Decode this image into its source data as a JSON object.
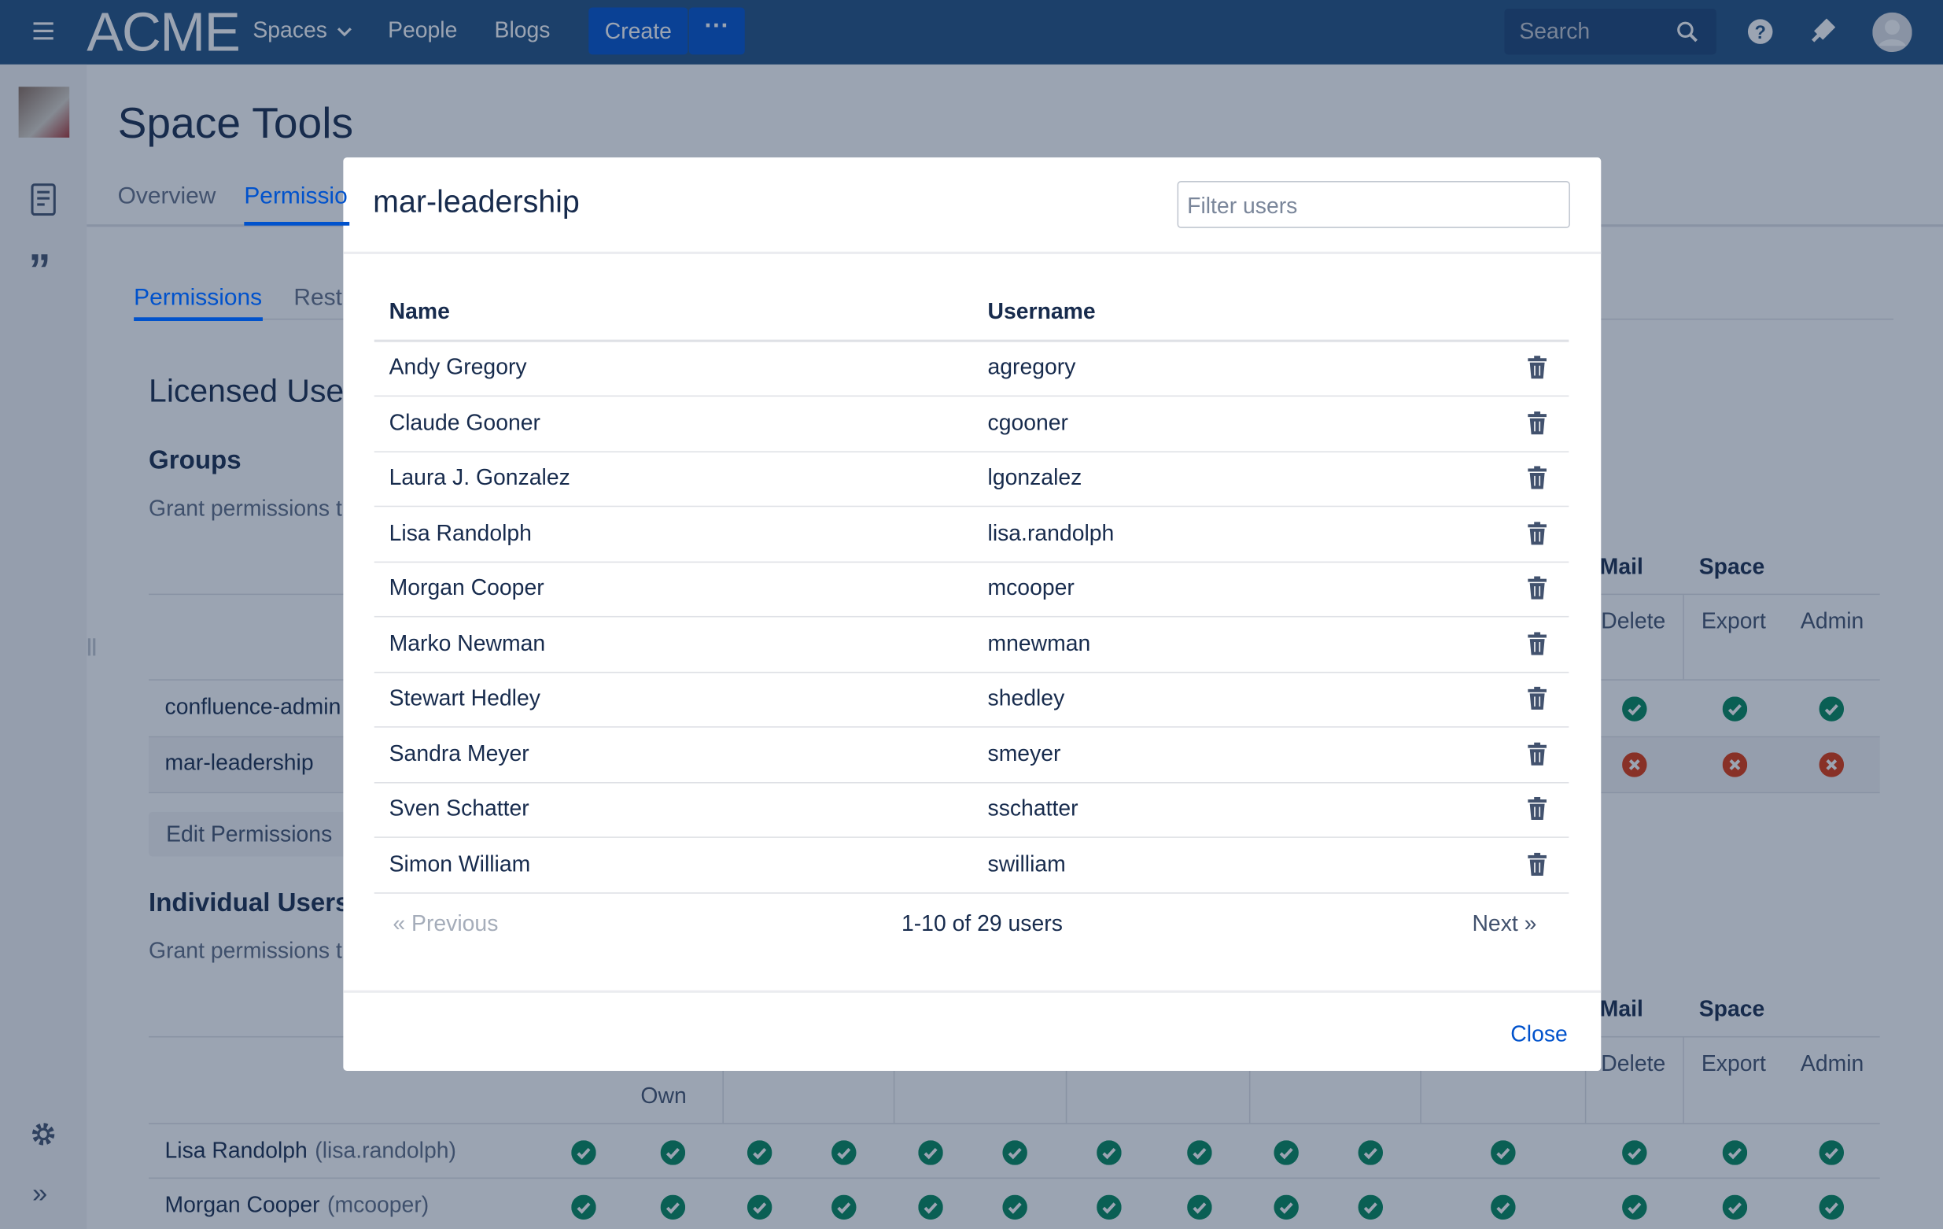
{
  "nav": {
    "logo": "ACME",
    "items": [
      "Spaces",
      "People",
      "Blogs"
    ],
    "create": "Create",
    "search": "Search"
  },
  "page": {
    "title": "Space Tools",
    "tabs": [
      "Overview",
      "Permissio"
    ],
    "subtabs": [
      "Permissions",
      "Rest"
    ],
    "section": "Licensed User",
    "groups_heading": "Groups",
    "groups_desc": "Grant permissions t",
    "group_headers": [
      "Mail",
      "Space"
    ],
    "group_subheaders": [
      "Delete",
      "Export",
      "Admin"
    ],
    "groups": [
      "confluence-admin",
      "mar-leadership"
    ],
    "edit": "Edit Permissions",
    "individual_heading": "Individual Users",
    "individual_desc": "Grant permissions t",
    "individual_headers": [
      "Mail",
      "Space"
    ],
    "individual_subheaders": [
      "Own",
      "Delete",
      "Export",
      "Admin"
    ],
    "users": [
      {
        "name": "Lisa Randolph",
        "username": "(lisa.randolph)"
      },
      {
        "name": "Morgan Cooper",
        "username": "(mcooper)"
      }
    ]
  },
  "modal": {
    "title": "mar-leadership",
    "filter_placeholder": "Filter users",
    "columns": [
      "Name",
      "Username"
    ],
    "rows": [
      [
        "Andy Gregory",
        "agregory"
      ],
      [
        "Claude Gooner",
        "cgooner"
      ],
      [
        "Laura J. Gonzalez",
        "lgonzalez"
      ],
      [
        "Lisa Randolph",
        "lisa.randolph"
      ],
      [
        "Morgan Cooper",
        "mcooper"
      ],
      [
        "Marko Newman",
        "mnewman"
      ],
      [
        "Stewart Hedley",
        "shedley"
      ],
      [
        "Sandra Meyer",
        "smeyer"
      ],
      [
        "Sven Schatter",
        "sschatter"
      ],
      [
        "Simon William",
        "swilliam"
      ]
    ],
    "previous": "Previous",
    "summary": "1-10 of 29 users",
    "next": "Next",
    "close": "Close"
  }
}
